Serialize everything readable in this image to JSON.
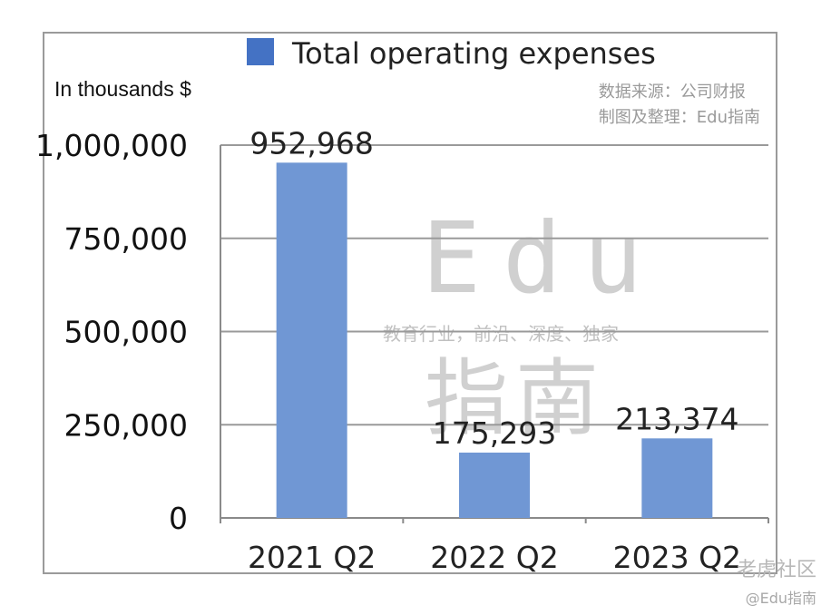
{
  "chart_data": {
    "type": "bar",
    "legend": "Total operating expenses",
    "legend_color": "#4472c4",
    "ylabel": "In thousands $",
    "categories": [
      "2021 Q2",
      "2022 Q2",
      "2023 Q2"
    ],
    "series": [
      {
        "name": "Total operating expenses",
        "values": [
          952968,
          175293,
          213374
        ]
      }
    ],
    "data_labels": [
      "952,968",
      "175,293",
      "213,374"
    ],
    "yticks": [
      0,
      250000,
      500000,
      750000,
      1000000
    ],
    "ytick_labels": [
      "0",
      "250,000",
      "500,000",
      "750,000",
      "1,000,000"
    ],
    "ylim": [
      0,
      1000000
    ],
    "grid": true,
    "bar_color": "#7097d4",
    "legend_position": "top"
  },
  "source": {
    "line1": "数据来源：公司财报",
    "line2": "制图及整理：Edu指南"
  },
  "watermark": {
    "brand": "Edu",
    "tagline": "教育行业，前沿、深度、独家",
    "name_cn": "指南"
  },
  "footer": {
    "platform": "老虎社区",
    "handle": "@Edu指南"
  }
}
